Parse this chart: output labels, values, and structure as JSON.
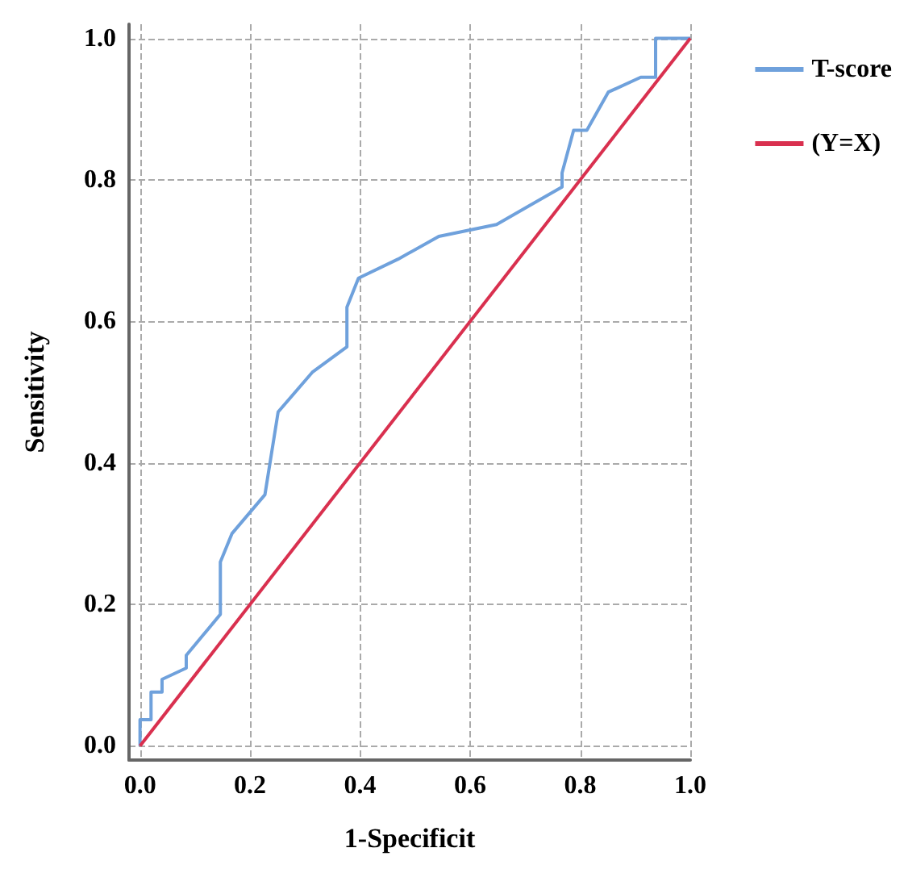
{
  "chart_data": {
    "type": "line",
    "xlabel": "1-Specificit",
    "ylabel": "Sensitivity",
    "xlim": [
      -0.02,
      1.0
    ],
    "ylim": [
      -0.02,
      1.02
    ],
    "xticks": [
      {
        "value": 0,
        "label": "0.0"
      },
      0.2,
      0.4,
      0.6,
      0.8,
      {
        "value": 1,
        "label": "1.0"
      }
    ],
    "yticks": [
      {
        "value": 0,
        "label": "0.0"
      },
      0.2,
      0.4,
      0.6,
      0.8,
      {
        "value": 1,
        "label": "1.0"
      }
    ],
    "series": [
      {
        "name": "T-score",
        "color": "#6fa1dc",
        "x": [
          0,
          0,
          0.02,
          0.02,
          0.04,
          0.04,
          0.084,
          0.084,
          0.146,
          0.146,
          0.167,
          0.227,
          0.251,
          0.313,
          0.376,
          0.376,
          0.397,
          0.469,
          0.543,
          0.648,
          0.767,
          0.767,
          0.788,
          0.812,
          0.851,
          0.91,
          0.937,
          0.937,
          1.0
        ],
        "values": [
          0,
          0.037,
          0.037,
          0.076,
          0.076,
          0.094,
          0.11,
          0.128,
          0.186,
          0.26,
          0.3,
          0.355,
          0.472,
          0.528,
          0.564,
          0.62,
          0.661,
          0.688,
          0.72,
          0.737,
          0.79,
          0.81,
          0.87,
          0.87,
          0.924,
          0.945,
          0.945,
          1.0,
          1.0
        ]
      },
      {
        "name": "(Y=X)",
        "color": "#d9304f",
        "x": [
          0,
          1
        ],
        "values": [
          0,
          1
        ]
      }
    ],
    "grid": true,
    "legend": "right",
    "marker": "none",
    "line_style": "solid"
  }
}
